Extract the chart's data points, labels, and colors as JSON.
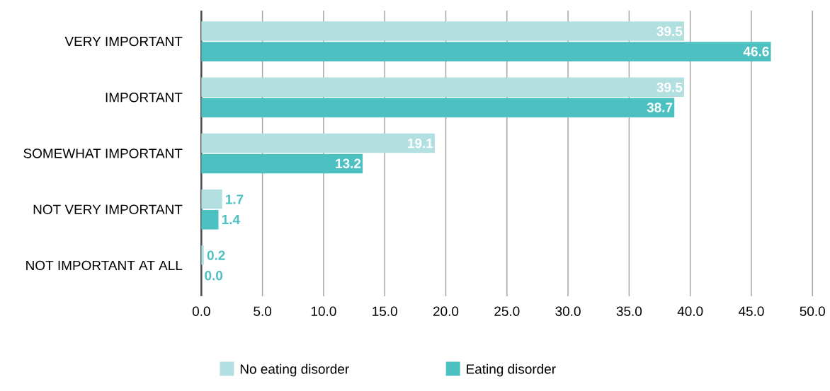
{
  "chart_data": {
    "type": "bar",
    "orientation": "horizontal",
    "categories": [
      "VERY IMPORTANT",
      "IMPORTANT",
      "SOMEWHAT IMPORTANT",
      "NOT VERY IMPORTANT",
      "NOT IMPORTANT AT ALL"
    ],
    "series": [
      {
        "name": "No eating disorder",
        "color": "#b2dfe0",
        "values": [
          39.5,
          39.5,
          19.1,
          1.7,
          0.2
        ],
        "value_labels": [
          "39.5",
          "39.5",
          "19.1",
          "1.7",
          "0.2"
        ]
      },
      {
        "name": "Eating disorder",
        "color": "#4dc0c2",
        "values": [
          46.6,
          38.7,
          13.2,
          1.4,
          0.0
        ],
        "value_labels": [
          "46.6",
          "38.7",
          "13.2",
          "1.4",
          "0.0"
        ]
      }
    ],
    "xlim": [
      0,
      50
    ],
    "xticks": [
      {
        "value": 0,
        "label": "0.0"
      },
      {
        "value": 5,
        "label": "5.0"
      },
      {
        "value": 10,
        "label": "10.0"
      },
      {
        "value": 15,
        "label": "15.0"
      },
      {
        "value": 20,
        "label": "20.0"
      },
      {
        "value": 25,
        "label": "25.0"
      },
      {
        "value": 30,
        "label": "30.0"
      },
      {
        "value": 35,
        "label": "35.0"
      },
      {
        "value": 40,
        "label": "40.0"
      },
      {
        "value": 45,
        "label": "45.0"
      },
      {
        "value": 50,
        "label": "50.0"
      }
    ],
    "grid": "x",
    "legend": "bottom"
  }
}
